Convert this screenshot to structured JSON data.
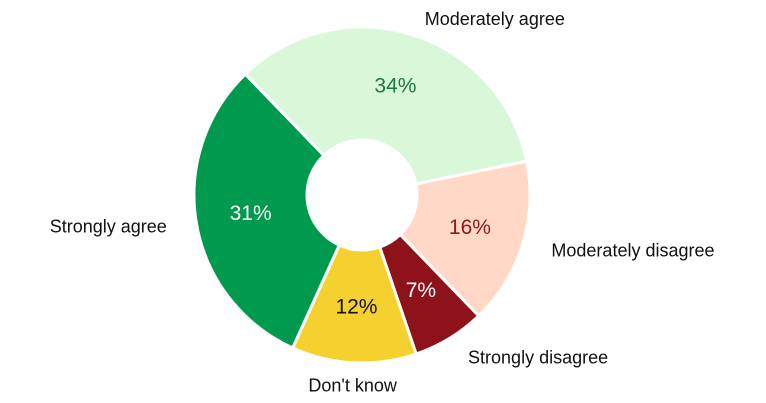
{
  "chart_data": {
    "type": "donut",
    "categories": [
      "Moderately agree",
      "Moderately disagree",
      "Strongly disagree",
      "Don't know",
      "Strongly agree"
    ],
    "values": [
      34,
      16,
      7,
      12,
      31
    ],
    "value_labels": [
      "34%",
      "16%",
      "7%",
      "12%",
      "31%"
    ],
    "colors": [
      "#d9f7d9",
      "#ffd8c8",
      "#8e1219",
      "#f5d12f",
      "#009a4e"
    ],
    "label_colors": [
      "#1b7a3c",
      "#8e1a1a",
      "#ffffff",
      "#111111",
      "#ffffff"
    ]
  }
}
